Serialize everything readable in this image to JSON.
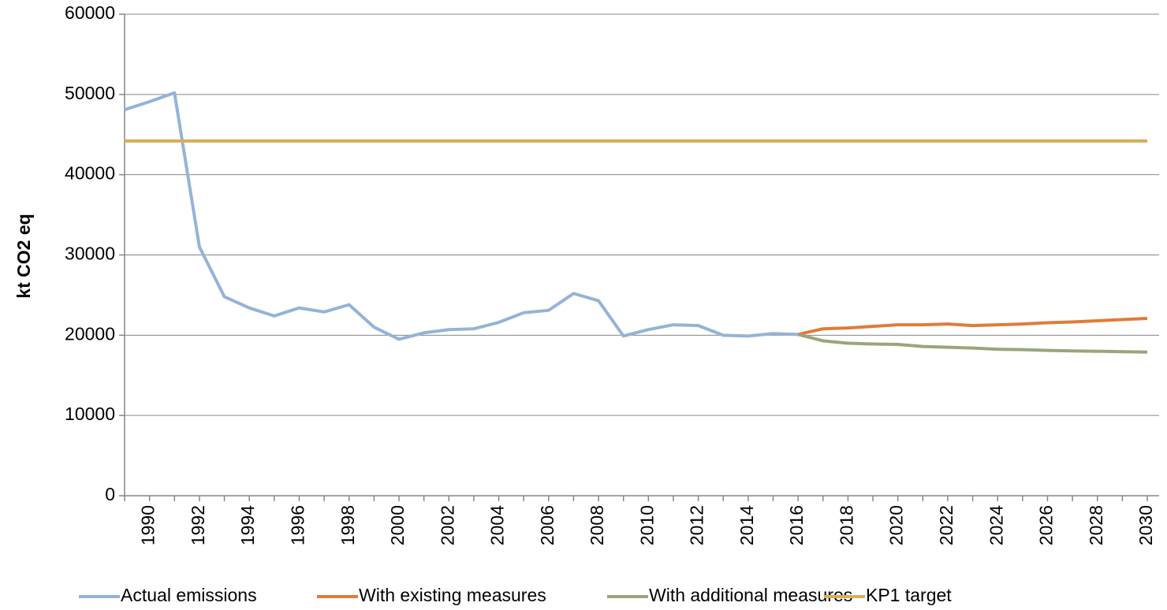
{
  "chart_data": {
    "type": "line",
    "y_label": "kt CO2 eq",
    "categories": [
      null,
      1990,
      null,
      1992,
      null,
      1994,
      null,
      1996,
      null,
      1998,
      null,
      2000,
      null,
      2002,
      null,
      2004,
      null,
      2006,
      null,
      2008,
      null,
      2010,
      null,
      2012,
      null,
      2014,
      null,
      2016,
      null,
      2018,
      null,
      2020,
      null,
      2022,
      null,
      2024,
      null,
      2026,
      null,
      2028,
      null,
      2030
    ],
    "series": [
      {
        "name": "Actual emissions",
        "color": "#95b3d7",
        "values": [
          48100,
          49100,
          50200,
          31000,
          24800,
          23400,
          22400,
          23400,
          22900,
          23800,
          21000,
          19500,
          20300,
          20700,
          20800,
          21600,
          22800,
          23100,
          25200,
          24300,
          19900,
          20700,
          21300,
          21200,
          20000,
          19900,
          20200,
          20100,
          null,
          null,
          null,
          null,
          null,
          null,
          null,
          null,
          null,
          null,
          null,
          null,
          null,
          null
        ]
      },
      {
        "name": "With existing measures",
        "color": "#e07b39",
        "values": [
          null,
          null,
          null,
          null,
          null,
          null,
          null,
          null,
          null,
          null,
          null,
          null,
          null,
          null,
          null,
          null,
          null,
          null,
          null,
          null,
          null,
          null,
          null,
          null,
          null,
          null,
          null,
          20100,
          20800,
          20900,
          21100,
          21300,
          21300,
          21400,
          21200,
          21300,
          21400,
          21550,
          21650,
          21800,
          21950,
          22100
        ]
      },
      {
        "name": "With additional measures",
        "color": "#98a67a",
        "values": [
          null,
          null,
          null,
          null,
          null,
          null,
          null,
          null,
          null,
          null,
          null,
          null,
          null,
          null,
          null,
          null,
          null,
          null,
          null,
          null,
          null,
          null,
          null,
          null,
          null,
          null,
          null,
          20100,
          19300,
          19000,
          18900,
          18850,
          18600,
          18500,
          18400,
          18250,
          18200,
          18100,
          18050,
          18000,
          17950,
          17900
        ]
      },
      {
        "name": "KP1 target",
        "color": "#d9ae58",
        "values": [
          44200,
          44200,
          44200,
          44200,
          44200,
          44200,
          44200,
          44200,
          44200,
          44200,
          44200,
          44200,
          44200,
          44200,
          44200,
          44200,
          44200,
          44200,
          44200,
          44200,
          44200,
          44200,
          44200,
          44200,
          44200,
          44200,
          44200,
          44200,
          44200,
          44200,
          44200,
          44200,
          44200,
          44200,
          44200,
          44200,
          44200,
          44200,
          44200,
          44200,
          44200,
          44200
        ]
      }
    ],
    "ylim": [
      0,
      60000
    ],
    "yticks": [
      0,
      10000,
      20000,
      30000,
      40000,
      50000,
      60000
    ],
    "grid": true,
    "legend": "bottom"
  }
}
